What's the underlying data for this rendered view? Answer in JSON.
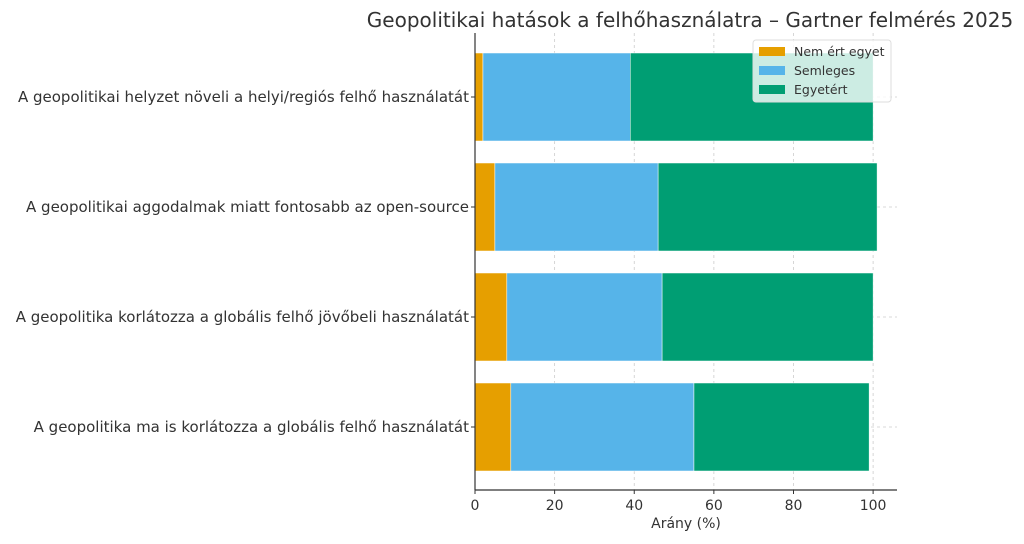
{
  "chart_data": {
    "type": "bar",
    "orientation": "horizontal",
    "stacked": true,
    "title": "Geopolitikai hatások a felhőhasználatra – Gartner felmérés 2025",
    "xlabel": "Arány (%)",
    "ylabel": "",
    "xlim": [
      0,
      106
    ],
    "xticks": [
      0,
      20,
      40,
      60,
      80,
      100
    ],
    "grid": true,
    "legend_position": "top-right",
    "categories": [
      "A geopolitikai helyzet növeli a helyi/regiós felhő használatát",
      "A geopolitikai aggodalmak miatt fontosabb az open-source",
      "A geopolitika korlátozza a globális felhő jövőbeli használatát",
      "A geopolitika ma is korlátozza a globális felhő használatát"
    ],
    "series": [
      {
        "name": "Nem ért egyet",
        "color": "#E69F00",
        "values": [
          2,
          5,
          8,
          9
        ]
      },
      {
        "name": "Semleges",
        "color": "#56B4E9",
        "values": [
          37,
          41,
          39,
          46
        ]
      },
      {
        "name": "Egyetért",
        "color": "#009E73",
        "values": [
          61,
          55,
          53,
          44
        ]
      }
    ]
  }
}
